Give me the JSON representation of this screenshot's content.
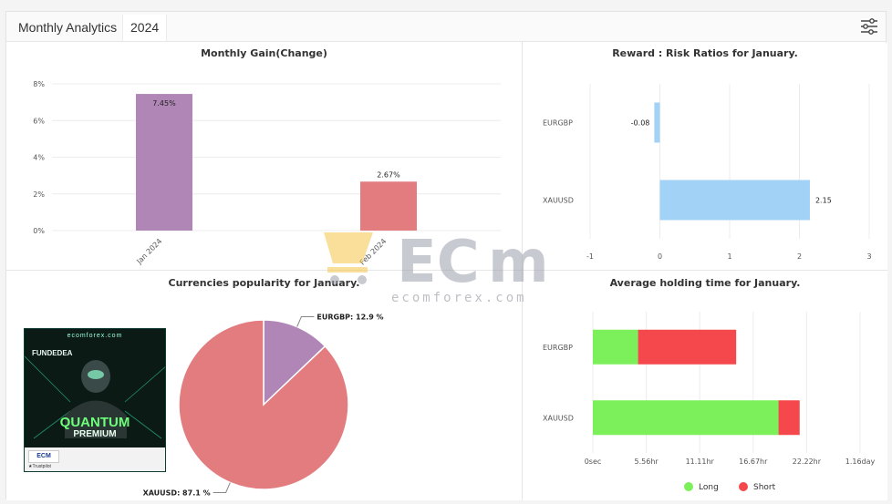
{
  "header": {
    "title": "Monthly Analytics",
    "year": "2024",
    "settings_icon": "sliders-icon"
  },
  "watermark": {
    "text": "ecomforex.com"
  },
  "promo": {
    "site": "ecomforex.com",
    "brand": "FUNDEDEA",
    "line1": "QUANTUM",
    "line2": "PREMIUM",
    "logo": "ECM",
    "trust": "★Trustpilot"
  },
  "chart_data": [
    {
      "type": "bar",
      "title": "Monthly Gain(Change)",
      "categories": [
        "Jan 2024",
        "Feb 2024"
      ],
      "values": [
        7.45,
        2.67
      ],
      "value_labels": [
        "7.45%",
        "2.67%"
      ],
      "colors": [
        "#b086b6",
        "#e37c7f"
      ],
      "ylim": [
        0,
        8
      ],
      "yticks": [
        "0%",
        "2%",
        "4%",
        "6%",
        "8%"
      ],
      "grid": true
    },
    {
      "type": "bar",
      "orientation": "horizontal",
      "title": "Reward : Risk Ratios for January.",
      "categories": [
        "EURGBP",
        "XAUUSD"
      ],
      "values": [
        -0.08,
        2.15
      ],
      "value_labels": [
        "-0.08",
        "2.15"
      ],
      "color": "#a3d2f7",
      "xlim": [
        -1,
        3
      ],
      "xticks": [
        "-1",
        "0",
        "1",
        "2",
        "3"
      ]
    },
    {
      "type": "pie",
      "title": "Currencies popularity for January.",
      "slices": [
        {
          "label": "EURGBP: 12.9 %",
          "value": 12.9,
          "color": "#b086b6"
        },
        {
          "label": "XAUUSD: 87.1 %",
          "value": 87.1,
          "color": "#e37c7f"
        }
      ]
    },
    {
      "type": "bar",
      "orientation": "horizontal",
      "stacked": true,
      "title": "Average holding time for January.",
      "categories": [
        "EURGBP",
        "XAUUSD"
      ],
      "xticks": [
        "0sec",
        "5.56hr",
        "11.11hr",
        "16.67hr",
        "22.22hr",
        "1.16day"
      ],
      "xlim_hours": [
        0,
        27.78
      ],
      "series": [
        {
          "name": "Long",
          "color": "#7cf05a",
          "values": [
            4.7,
            19.3
          ]
        },
        {
          "name": "Short",
          "color": "#f4484c",
          "values": [
            10.2,
            2.2
          ]
        }
      ],
      "legend": "bottom"
    }
  ]
}
